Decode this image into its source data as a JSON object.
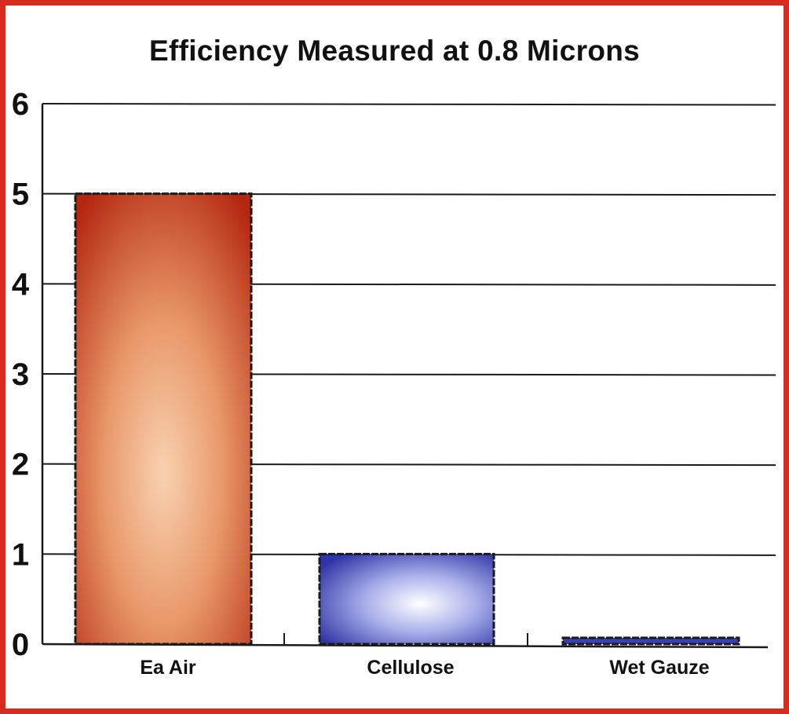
{
  "chart_data": {
    "type": "bar",
    "title": "Efficiency Measured at 0.8 Microns",
    "xlabel": "",
    "ylabel": "",
    "categories": [
      "Ea Air",
      "Cellulose",
      "Wet Gauze"
    ],
    "values": [
      5,
      1,
      0.07
    ],
    "ylim": [
      0,
      6
    ],
    "yticks": [
      0,
      1,
      2,
      3,
      4,
      5,
      6
    ],
    "grid": true,
    "legend": "none",
    "colors": {
      "frame": "#d92a1e",
      "bar_edge": [
        "#b3260f",
        "#e9a47a",
        "#a82410"
      ],
      "bar_center": [
        "#f6caa6",
        "#ffffff",
        "#ffffff"
      ],
      "bar_fill": [
        "#c0321a",
        "#3b3fb2",
        "#3b3fb2"
      ]
    }
  }
}
